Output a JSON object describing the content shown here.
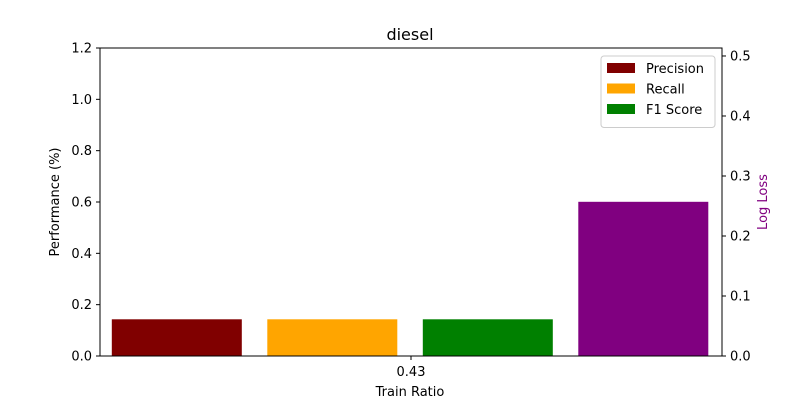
{
  "chart_data": {
    "type": "bar",
    "title": "diesel",
    "xlabel": "Train Ratio",
    "ylabel": "Performance (%)",
    "y2label": "Log Loss",
    "categories": [
      "0.43"
    ],
    "ylim": [
      0,
      1.2
    ],
    "y2lim": [
      0,
      0.5133
    ],
    "yticks": [
      0.0,
      0.2,
      0.4,
      0.6,
      0.8,
      1.0,
      1.2
    ],
    "y2ticks": [
      0.0,
      0.1,
      0.2,
      0.3,
      0.4,
      0.5
    ],
    "grid": false,
    "legend_position": "top-right",
    "series": [
      {
        "name": "Precision",
        "axis": "left",
        "color": "#800000",
        "values": [
          0.143
        ]
      },
      {
        "name": "Recall",
        "axis": "left",
        "color": "#ffa500",
        "values": [
          0.143
        ]
      },
      {
        "name": "F1 Score",
        "axis": "left",
        "color": "#008000",
        "values": [
          0.143
        ]
      },
      {
        "axis": "right",
        "color": "#800080",
        "values": [
          0.257
        ]
      }
    ],
    "y2label_color": "#800080"
  }
}
